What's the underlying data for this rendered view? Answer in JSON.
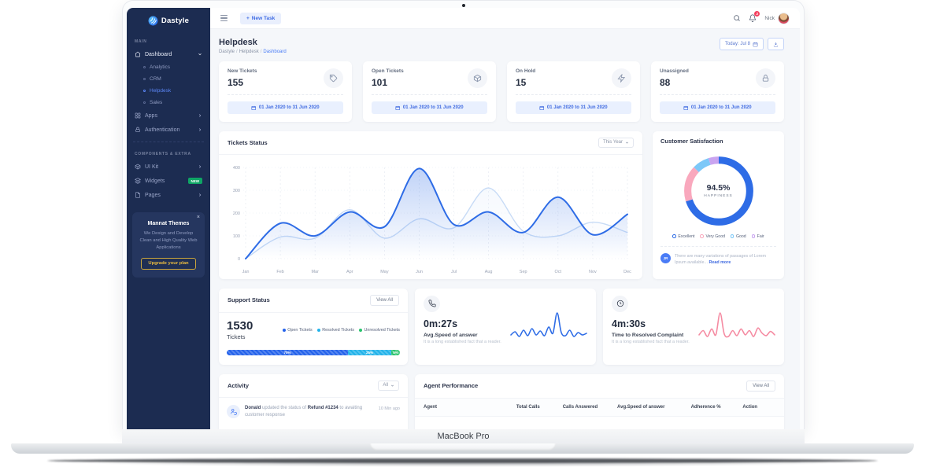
{
  "frame": {
    "device_label": "MacBook Pro"
  },
  "icons": {
    "plus": "+",
    "close": "×"
  },
  "topbar": {
    "new_task_label": "New Task",
    "user_name": "Nick",
    "notification_count": "2"
  },
  "sidebar": {
    "logo_text": "Dastyle",
    "section_main": "MAIN",
    "dashboard_label": "Dashboard",
    "dashboard_children": [
      "Analytics",
      "CRM",
      "Helpdesk",
      "Sales"
    ],
    "apps_label": "Apps",
    "auth_label": "Authentication",
    "section_components": "COMPONENTS & EXTRA",
    "uikit_label": "UI Kit",
    "widgets_label": "Widgets",
    "widgets_badge": "NEW",
    "pages_label": "Pages",
    "promo": {
      "title": "Mannat Themes",
      "text": "We Design and Develop Clean and High Quality Web Applications",
      "button_label": "Upgrade your plan"
    }
  },
  "page": {
    "title": "Helpdesk",
    "breadcrumb": [
      "Dastyle",
      "Helpdesk",
      "Dashboard"
    ],
    "date_button_label": "Today: Jul 8"
  },
  "stats": [
    {
      "label": "New Tickets",
      "value": "155",
      "icon": "tag-icon",
      "date_range": "01 Jan 2020 to 31 Jun 2020"
    },
    {
      "label": "Open Tickets",
      "value": "101",
      "icon": "package-icon",
      "date_range": "01 Jan 2020 to 31 Jun 2020"
    },
    {
      "label": "On Hold",
      "value": "15",
      "icon": "zap-icon",
      "date_range": "01 Jan 2020 to 31 Jun 2020"
    },
    {
      "label": "Unassigned",
      "value": "88",
      "icon": "lock-icon",
      "date_range": "01 Jan 2020 to 31 Jun 2020"
    }
  ],
  "tickets_panel": {
    "title": "Tickets Status",
    "filter_value": "This Year"
  },
  "satisfaction_panel": {
    "title": "Customer Satisfaction",
    "note_initials": "JR",
    "note_text": "There are many variations of passages of Lorem Ipsum available...",
    "read_more_label": "Read more"
  },
  "support_panel": {
    "title": "Support Status",
    "view_all_label": "View All"
  },
  "speed_card": {
    "value": "0m:27s",
    "label": "Avg.Speed of answer",
    "sub": "It is a long established fact that a reader."
  },
  "resolve_card": {
    "value": "4m:30s",
    "label": "Time to Resolved Complaint",
    "sub": "It is a long established fact that a reader."
  },
  "activity_panel": {
    "title": "Activity",
    "filter_value": "All",
    "item": {
      "actor": "Donald",
      "action": " updated the status of ",
      "target": "Refund #1234",
      "tail": " to awaiting customer response",
      "time": "10 Min ago"
    }
  },
  "agents_panel": {
    "title": "Agent Performance",
    "view_all_label": "View All",
    "columns": [
      "Agent",
      "Total Calls",
      "Calls Answered",
      "Avg.Speed of answer",
      "Adherence %",
      "Action"
    ]
  },
  "chart_data": [
    {
      "id": "tickets-status",
      "type": "line",
      "title": "Tickets Status",
      "x": [
        "Jan",
        "Feb",
        "Mar",
        "Apr",
        "May",
        "Jun",
        "Jul",
        "Aug",
        "Sep",
        "Oct",
        "Nov",
        "Dec"
      ],
      "xlabel": "",
      "ylabel": "",
      "ylim": [
        0,
        400
      ],
      "yticks": [
        0,
        100,
        200,
        300,
        400
      ],
      "grid": true,
      "legend_position": "none",
      "series": [
        {
          "name": "secondary",
          "color": "#c7dbf6",
          "values": [
            0,
            95,
            90,
            215,
            90,
            175,
            135,
            310,
            120,
            100,
            160,
            115
          ]
        },
        {
          "name": "primary",
          "color": "#2e6ce6",
          "values": [
            0,
            155,
            100,
            205,
            140,
            395,
            150,
            205,
            115,
            270,
            105,
            195
          ]
        }
      ]
    },
    {
      "id": "customer-satisfaction",
      "type": "pie",
      "title": "Customer Satisfaction",
      "center_value": "94.5%",
      "center_label": "HAPPINESS",
      "slices": [
        {
          "label": "Excellent",
          "value": 70,
          "color": "#2e6ce6"
        },
        {
          "label": "Very Good",
          "value": 17,
          "color": "#f9a8bd"
        },
        {
          "label": "Good",
          "value": 8,
          "color": "#7cc8f8"
        },
        {
          "label": "Fair",
          "value": 5,
          "color": "#c9a4f0"
        }
      ]
    },
    {
      "id": "support-status",
      "type": "bar",
      "title": "Support Status",
      "total_value": "1530",
      "total_unit": "Tickets",
      "segments": [
        {
          "label": "Open Tickets",
          "pct": 70,
          "pct_label": "70%",
          "color": "#2563eb"
        },
        {
          "label": "Resolved Tickets",
          "pct": 25,
          "pct_label": "25%",
          "color": "#23b3ea"
        },
        {
          "label": "Unresolved Tickets",
          "pct": 5,
          "pct_label": "5%",
          "color": "#28c36c"
        }
      ]
    },
    {
      "id": "avg-speed-sparkline",
      "type": "line",
      "color": "#2e6ce6",
      "values": [
        10,
        14,
        8,
        16,
        9,
        18,
        10,
        15,
        9,
        20,
        12,
        38,
        13,
        9,
        16,
        8,
        13,
        10,
        12
      ]
    },
    {
      "id": "resolve-time-sparkline",
      "type": "line",
      "color": "#f58ba2",
      "values": [
        10,
        15,
        8,
        17,
        10,
        36,
        11,
        8,
        15,
        9,
        17,
        10,
        15,
        8,
        18,
        12,
        9,
        14,
        10
      ]
    }
  ]
}
